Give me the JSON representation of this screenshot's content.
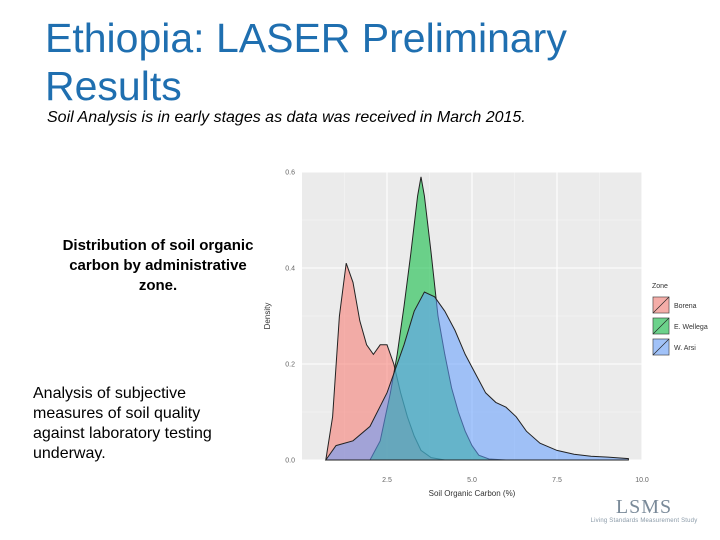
{
  "slide": {
    "title": "Ethiopia: LASER Preliminary Results",
    "subtitle": "Soil Analysis is in early stages as data was received in March 2015.",
    "caption_chart": "Distribution of soil organic carbon by administrative zone.",
    "caption_analysis": "Analysis of subjective measures of soil quality against laboratory testing underway.",
    "logo_text": "LSMS",
    "logo_tagline": "Living Standards Measurement Study"
  },
  "chart_data": {
    "type": "area",
    "title": "",
    "xlabel": "Soil Organic Carbon (%)",
    "ylabel": "Density",
    "xlim": [
      0,
      10
    ],
    "ylim": [
      0,
      0.6
    ],
    "xticks": [
      "2.5",
      "5.0",
      "7.5",
      "10.0"
    ],
    "yticks": [
      "0.0",
      "0.2",
      "0.4",
      "0.6"
    ],
    "grid": true,
    "background": "#ebebeb",
    "legend": {
      "title": "Zone",
      "placement": "right"
    },
    "series": [
      {
        "name": "Borena",
        "color": "#f8766d",
        "x": [
          0.7,
          0.9,
          1.1,
          1.3,
          1.5,
          1.7,
          1.9,
          2.1,
          2.3,
          2.5,
          2.7,
          2.9,
          3.1,
          3.3,
          3.5,
          3.8,
          4.2
        ],
        "y": [
          0.0,
          0.09,
          0.3,
          0.41,
          0.37,
          0.29,
          0.24,
          0.22,
          0.24,
          0.24,
          0.2,
          0.14,
          0.09,
          0.05,
          0.02,
          0.005,
          0.0
        ]
      },
      {
        "name": "E. Wellega",
        "color": "#00ba38",
        "x": [
          2.0,
          2.3,
          2.6,
          2.8,
          3.0,
          3.2,
          3.4,
          3.5,
          3.6,
          3.8,
          4.0,
          4.2,
          4.4,
          4.6,
          4.8,
          5.0,
          5.2,
          5.5,
          6.0
        ],
        "y": [
          0.0,
          0.04,
          0.14,
          0.22,
          0.32,
          0.43,
          0.55,
          0.59,
          0.55,
          0.43,
          0.3,
          0.22,
          0.15,
          0.1,
          0.06,
          0.03,
          0.01,
          0.002,
          0.0
        ]
      },
      {
        "name": "W. Arsi",
        "color": "#619cff",
        "x": [
          0.7,
          1.0,
          1.5,
          2.0,
          2.5,
          3.0,
          3.3,
          3.6,
          3.9,
          4.2,
          4.5,
          4.8,
          5.1,
          5.4,
          5.7,
          6.0,
          6.3,
          6.6,
          7.0,
          7.5,
          8.0,
          8.5,
          9.0,
          9.6
        ],
        "y": [
          0.0,
          0.03,
          0.04,
          0.07,
          0.14,
          0.24,
          0.31,
          0.35,
          0.34,
          0.31,
          0.27,
          0.22,
          0.18,
          0.14,
          0.12,
          0.11,
          0.09,
          0.06,
          0.035,
          0.02,
          0.012,
          0.008,
          0.006,
          0.003
        ]
      }
    ]
  }
}
